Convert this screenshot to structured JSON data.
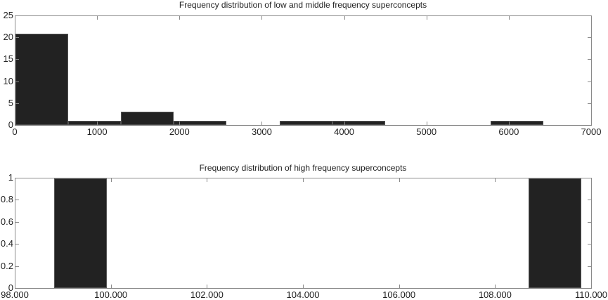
{
  "chart_data": [
    {
      "type": "bar",
      "title": "Frequency distribution of low and middle frequency superconcepts",
      "xlabel": "",
      "ylabel": "",
      "xlim": [
        0,
        7000
      ],
      "ylim": [
        0,
        25
      ],
      "xticks": [
        "0",
        "1000",
        "2000",
        "3000",
        "4000",
        "5000",
        "6000",
        "7000"
      ],
      "yticks": [
        "0",
        "5",
        "10",
        "15",
        "20",
        "25"
      ],
      "bins": [
        {
          "start": 0,
          "end": 642,
          "count": 21
        },
        {
          "start": 642,
          "end": 1284,
          "count": 1
        },
        {
          "start": 1284,
          "end": 1926,
          "count": 3
        },
        {
          "start": 1926,
          "end": 2568,
          "count": 1
        },
        {
          "start": 2568,
          "end": 3210,
          "count": 0
        },
        {
          "start": 3210,
          "end": 3852,
          "count": 1
        },
        {
          "start": 3852,
          "end": 4494,
          "count": 1
        },
        {
          "start": 4494,
          "end": 5136,
          "count": 0
        },
        {
          "start": 5136,
          "end": 5778,
          "count": 0
        },
        {
          "start": 5778,
          "end": 6420,
          "count": 1
        }
      ],
      "grid": false,
      "bar_color": "#222222"
    },
    {
      "type": "bar",
      "title": "Frequency distribution of high frequency superconcepts",
      "xlabel": "",
      "ylabel": "",
      "xlim": [
        98000,
        110000
      ],
      "ylim": [
        0,
        1
      ],
      "xticks": [
        "98.000",
        "100.000",
        "102.000",
        "104.000",
        "106.000",
        "108.000",
        "110.000"
      ],
      "yticks": [
        "0",
        "0.2",
        "0.4",
        "0.6",
        "0.8",
        "1"
      ],
      "bins": [
        {
          "start": 98800,
          "end": 99900,
          "count": 1
        },
        {
          "start": 108700,
          "end": 109800,
          "count": 1
        }
      ],
      "grid": false,
      "bar_color": "#222222"
    }
  ]
}
